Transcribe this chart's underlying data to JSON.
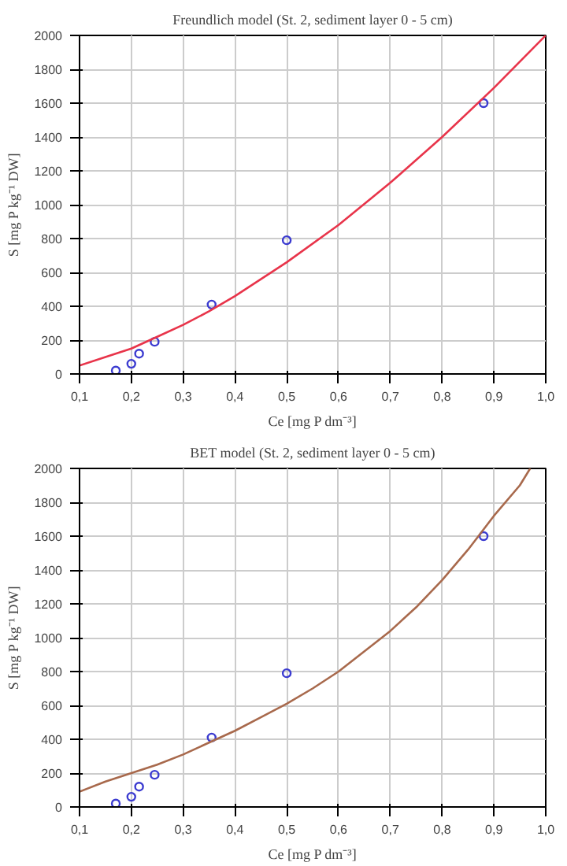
{
  "chart_data": [
    {
      "type": "scatter",
      "title": "Freundlich model (St. 2, sediment layer 0 - 5 cm)",
      "xlabel": "Ce [mg P dm⁻³]",
      "ylabel": "S [mg P kg⁻¹ DW]",
      "xlim": [
        0.1,
        1.0
      ],
      "ylim": [
        0,
        2000
      ],
      "xticks": [
        {
          "value": 0.1,
          "label": "0,1"
        },
        {
          "value": 0.2,
          "label": "0,2"
        },
        {
          "value": 0.3,
          "label": "0,3"
        },
        {
          "value": 0.4,
          "label": "0,4"
        },
        {
          "value": 0.5,
          "label": "0,5"
        },
        {
          "value": 0.6,
          "label": "0,6"
        },
        {
          "value": 0.7,
          "label": "0,7"
        },
        {
          "value": 0.8,
          "label": "0,8"
        },
        {
          "value": 0.9,
          "label": "0,9"
        },
        {
          "value": 1.0,
          "label": "1,0"
        }
      ],
      "yticks": [
        0,
        200,
        400,
        600,
        800,
        1000,
        1200,
        1400,
        1600,
        1800,
        2000
      ],
      "grid": true,
      "series": [
        {
          "marker": "circle",
          "color": "#3b3bd0",
          "x": [
            0.17,
            0.2,
            0.215,
            0.245,
            0.355,
            0.5,
            0.88
          ],
          "values": [
            20,
            60,
            120,
            190,
            410,
            790,
            1600
          ]
        },
        {
          "type": "line",
          "marker": "none",
          "color": "#e8344a",
          "x": [
            0.1,
            0.15,
            0.2,
            0.25,
            0.3,
            0.35,
            0.4,
            0.5,
            0.6,
            0.7,
            0.8,
            0.9,
            1.0
          ],
          "values": [
            50,
            100,
            150,
            220,
            290,
            370,
            460,
            660,
            880,
            1130,
            1400,
            1690,
            2000
          ]
        }
      ]
    },
    {
      "type": "scatter",
      "title": "BET model (St. 2, sediment layer 0 - 5 cm)",
      "xlabel": "Ce [mg P dm⁻³]",
      "ylabel": "S [mg P kg⁻¹ DW]",
      "xlim": [
        0.1,
        1.0
      ],
      "ylim": [
        0,
        2000
      ],
      "xticks": [
        {
          "value": 0.1,
          "label": "0,1"
        },
        {
          "value": 0.2,
          "label": "0,2"
        },
        {
          "value": 0.3,
          "label": "0,3"
        },
        {
          "value": 0.4,
          "label": "0,4"
        },
        {
          "value": 0.5,
          "label": "0,5"
        },
        {
          "value": 0.6,
          "label": "0,6"
        },
        {
          "value": 0.7,
          "label": "0,7"
        },
        {
          "value": 0.8,
          "label": "0,8"
        },
        {
          "value": 0.9,
          "label": "0,9"
        },
        {
          "value": 1.0,
          "label": "1,0"
        }
      ],
      "yticks": [
        0,
        200,
        400,
        600,
        800,
        1000,
        1200,
        1400,
        1600,
        1800,
        2000
      ],
      "grid": true,
      "series": [
        {
          "marker": "circle",
          "color": "#3b3bd0",
          "x": [
            0.17,
            0.2,
            0.215,
            0.245,
            0.355,
            0.5,
            0.88
          ],
          "values": [
            20,
            60,
            120,
            190,
            410,
            790,
            1600
          ]
        },
        {
          "type": "line",
          "marker": "none",
          "color": "#a8694c",
          "x": [
            0.1,
            0.15,
            0.2,
            0.25,
            0.3,
            0.35,
            0.4,
            0.45,
            0.5,
            0.55,
            0.6,
            0.65,
            0.7,
            0.75,
            0.8,
            0.85,
            0.9,
            0.95,
            0.97
          ],
          "values": [
            90,
            150,
            200,
            250,
            310,
            380,
            450,
            530,
            610,
            700,
            800,
            920,
            1040,
            1180,
            1340,
            1520,
            1720,
            1900,
            2000
          ]
        }
      ]
    }
  ]
}
